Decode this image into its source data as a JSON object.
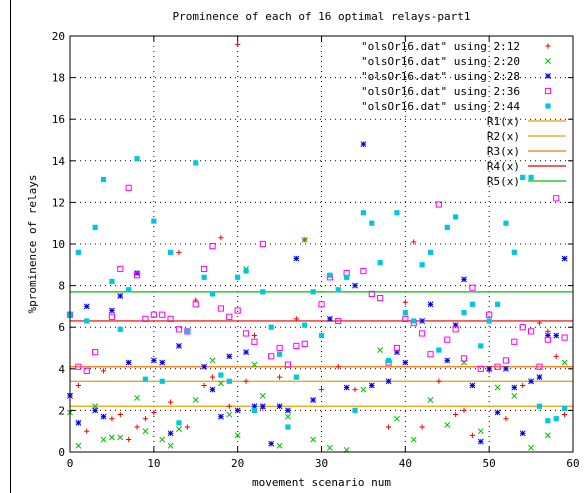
{
  "chart_data": {
    "type": "scatter",
    "title": "Prominence of each of 16 optimal relays-part1",
    "xlabel": "movement scenario num",
    "ylabel": "%prominence of relays",
    "xlim": [
      0,
      60
    ],
    "ylim": [
      0,
      20
    ],
    "x_ticks": [
      0,
      10,
      20,
      30,
      40,
      50,
      60
    ],
    "y_ticks": [
      0,
      2,
      4,
      6,
      8,
      10,
      12,
      14,
      16,
      18,
      20
    ],
    "grid": true,
    "legend_position": "top-right",
    "series": [
      {
        "name": "\"olsOr16.dat\" using 2:12",
        "marker": "plus",
        "color": "#ff0000",
        "x": [
          0,
          1,
          2,
          4,
          5,
          6,
          7,
          8,
          9,
          10,
          12,
          13,
          14,
          15,
          16,
          17,
          18,
          19,
          20,
          21,
          22,
          23,
          25,
          27,
          28,
          30,
          32,
          34,
          36,
          38,
          40,
          41,
          42,
          44,
          46,
          47,
          48,
          50,
          52,
          54,
          56,
          57,
          58,
          59
        ],
        "y": [
          2.8,
          3.2,
          1.0,
          3.9,
          1.6,
          1.8,
          0.6,
          1.2,
          1.6,
          1.9,
          2.4,
          9.6,
          1.2,
          7.3,
          3.2,
          3.6,
          10.3,
          2.2,
          19.6,
          3.4,
          5.6,
          2.1,
          3.6,
          6.4,
          10.2,
          3.0,
          4.1,
          3.0,
          3.2,
          1.2,
          7.2,
          10.1,
          1.2,
          3.4,
          1.8,
          2.0,
          0.8,
          3.9,
          1.6,
          3.2,
          6.2,
          5.8,
          4.6,
          1.8
        ]
      },
      {
        "name": "\"olsOr16.dat\" using 2:20",
        "marker": "cross",
        "color": "#00c000",
        "x": [
          0,
          1,
          3,
          4,
          5,
          6,
          8,
          9,
          11,
          12,
          13,
          15,
          17,
          18,
          19,
          20,
          21,
          22,
          23,
          25,
          26,
          28,
          29,
          31,
          33,
          35,
          37,
          39,
          41,
          43,
          45,
          47,
          49,
          51,
          53,
          55,
          57,
          59
        ],
        "y": [
          1.9,
          0.3,
          2.2,
          0.6,
          0.7,
          0.7,
          2.6,
          1.0,
          0.6,
          0.3,
          1.1,
          2.5,
          4.4,
          3.3,
          1.8,
          0.8,
          8.8,
          4.2,
          2.7,
          0.3,
          1.7,
          10.2,
          0.6,
          0.2,
          0.1,
          3.0,
          4.9,
          1.6,
          0.6,
          2.5,
          1.3,
          4.3,
          1.0,
          3.1,
          2.7,
          0.2,
          0.8,
          4.3
        ]
      },
      {
        "name": "\"olsOr16.dat\" using 2:28",
        "marker": "star",
        "color": "#0000ff",
        "x": [
          0,
          1,
          2,
          3,
          4,
          5,
          6,
          7,
          8,
          10,
          11,
          12,
          13,
          14,
          16,
          17,
          18,
          19,
          20,
          21,
          22,
          23,
          24,
          25,
          26,
          27,
          29,
          31,
          33,
          34,
          35,
          36,
          38,
          39,
          40,
          42,
          43,
          45,
          46,
          47,
          48,
          49,
          50,
          51,
          52,
          53,
          54,
          55,
          56,
          57,
          58,
          59
        ],
        "y": [
          2.7,
          1.4,
          7.0,
          2.0,
          1.7,
          6.8,
          7.5,
          4.3,
          8.6,
          4.4,
          4.3,
          0.9,
          5.1,
          5.8,
          4.1,
          3.0,
          1.7,
          4.6,
          2.0,
          4.8,
          2.2,
          2.2,
          0.4,
          2.2,
          2.0,
          9.3,
          2.5,
          6.4,
          3.1,
          8.0,
          14.8,
          3.2,
          3.4,
          4.8,
          4.3,
          6.3,
          7.1,
          4.4,
          6.1,
          8.3,
          3.2,
          0.5,
          4.0,
          1.9,
          4.0,
          3.1,
          0.9,
          3.4,
          3.6,
          5.6,
          5.6,
          9.3
        ]
      },
      {
        "name": "\"olsOr16.dat\" using 2:36",
        "marker": "square",
        "color": "#ff00ff",
        "x": [
          0,
          1,
          2,
          3,
          5,
          6,
          7,
          8,
          9,
          10,
          11,
          12,
          13,
          14,
          15,
          16,
          17,
          18,
          19,
          20,
          21,
          22,
          23,
          24,
          25,
          26,
          27,
          28,
          30,
          31,
          32,
          33,
          35,
          36,
          37,
          38,
          39,
          40,
          41,
          42,
          43,
          44,
          45,
          46,
          47,
          48,
          49,
          50,
          51,
          52,
          53,
          54,
          55,
          56,
          57,
          58,
          59
        ],
        "y": [
          6.6,
          4.1,
          3.9,
          4.8,
          6.5,
          8.8,
          12.7,
          8.5,
          6.4,
          6.6,
          6.6,
          6.4,
          5.9,
          5.8,
          7.1,
          8.8,
          9.9,
          6.9,
          6.5,
          6.8,
          5.7,
          5.3,
          10.0,
          4.6,
          5.0,
          4.2,
          5.1,
          5.2,
          7.1,
          8.4,
          6.3,
          8.6,
          8.7,
          7.6,
          7.4,
          4.3,
          5.0,
          6.4,
          6.2,
          5.7,
          4.7,
          11.9,
          5.4,
          5.9,
          4.5,
          7.9,
          4.0,
          6.6,
          4.1,
          4.4,
          5.3,
          6.0,
          5.8,
          4.1,
          5.4,
          12.2,
          5.5
        ]
      },
      {
        "name": "\"olsOr16.dat\" using 2:44",
        "marker": "filled-square",
        "color": "#00c8dc",
        "x": [
          0,
          1,
          2,
          3,
          4,
          5,
          6,
          7,
          8,
          9,
          10,
          11,
          12,
          13,
          14,
          15,
          16,
          17,
          18,
          19,
          20,
          21,
          22,
          23,
          24,
          25,
          26,
          27,
          28,
          29,
          30,
          31,
          32,
          33,
          34,
          35,
          36,
          37,
          38,
          39,
          40,
          41,
          42,
          43,
          44,
          45,
          46,
          47,
          48,
          49,
          50,
          51,
          52,
          53,
          54,
          55,
          56,
          57,
          58,
          59
        ],
        "y": [
          6.6,
          9.6,
          6.3,
          10.8,
          13.1,
          8.2,
          5.9,
          7.8,
          14.1,
          3.5,
          11.1,
          3.4,
          9.6,
          1.4,
          5.8,
          13.9,
          8.4,
          7.6,
          3.7,
          3.4,
          8.4,
          8.7,
          2.0,
          7.7,
          6.0,
          4.7,
          1.2,
          3.6,
          6.1,
          7.7,
          5.6,
          8.5,
          7.8,
          8.4,
          2.0,
          11.5,
          11.0,
          9.1,
          4.4,
          11.5,
          6.7,
          6.3,
          9.0,
          9.6,
          4.9,
          10.8,
          11.3,
          6.7,
          7.1,
          5.1,
          6.3,
          7.1,
          11.0,
          9.6,
          13.2,
          13.2,
          2.2,
          1.5,
          1.6,
          2.1
        ]
      }
    ],
    "reference_lines": [
      {
        "name": "R1(x)",
        "y": 2.2,
        "color": "#e8a000"
      },
      {
        "name": "R2(x)",
        "y": 3.4,
        "color": "#e8a000"
      },
      {
        "name": "R3(x)",
        "y": 4.1,
        "color": "#ff7000"
      },
      {
        "name": "R4(x)",
        "y": 6.3,
        "color": "#e00000"
      },
      {
        "name": "R5(x)",
        "y": 7.7,
        "color": "#00c000"
      }
    ]
  }
}
